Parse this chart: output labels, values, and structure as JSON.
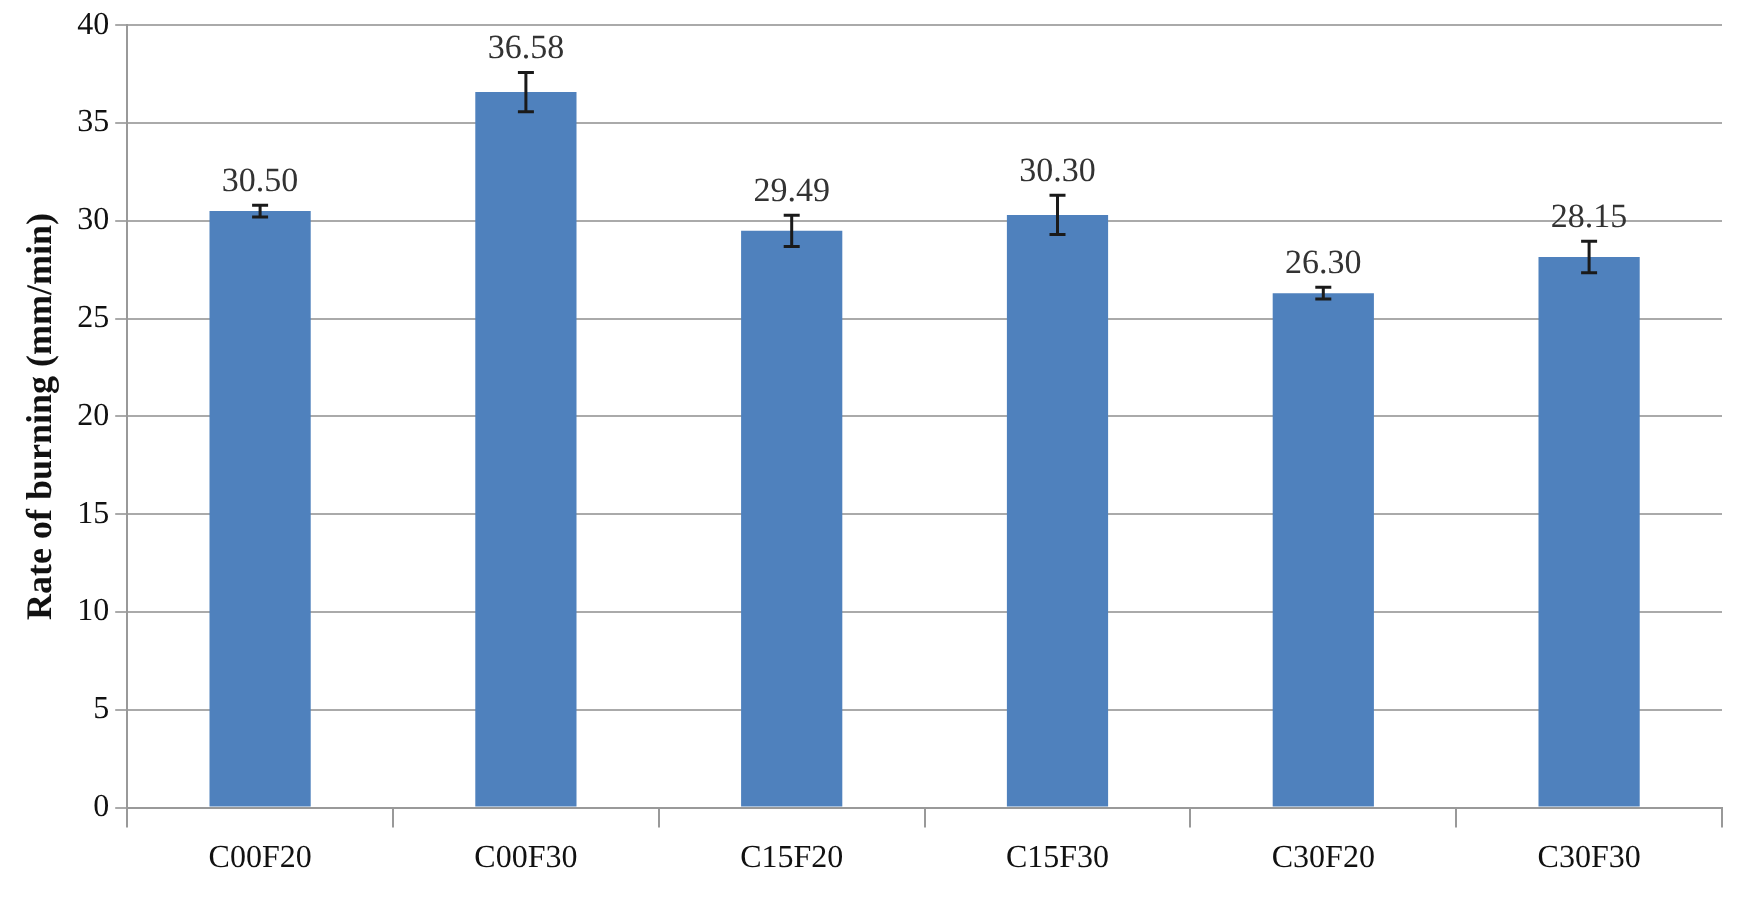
{
  "chart_data": {
    "type": "bar",
    "ylabel": "Rate of burning (mm/min)",
    "categories": [
      "C00F20",
      "C00F30",
      "C15F20",
      "C15F30",
      "C30F20",
      "C30F30"
    ],
    "values": [
      30.5,
      36.58,
      29.49,
      30.3,
      26.3,
      28.15
    ],
    "value_labels": [
      "30.50",
      "36.58",
      "29.49",
      "30.30",
      "26.30",
      "28.15"
    ],
    "errors": [
      0.3,
      1.0,
      0.8,
      1.0,
      0.3,
      0.8
    ],
    "color": "#4f81bd",
    "ylim": [
      0,
      40
    ],
    "yticks": [
      0,
      5,
      10,
      15,
      20,
      25,
      30,
      35,
      40
    ],
    "grid": "y"
  }
}
